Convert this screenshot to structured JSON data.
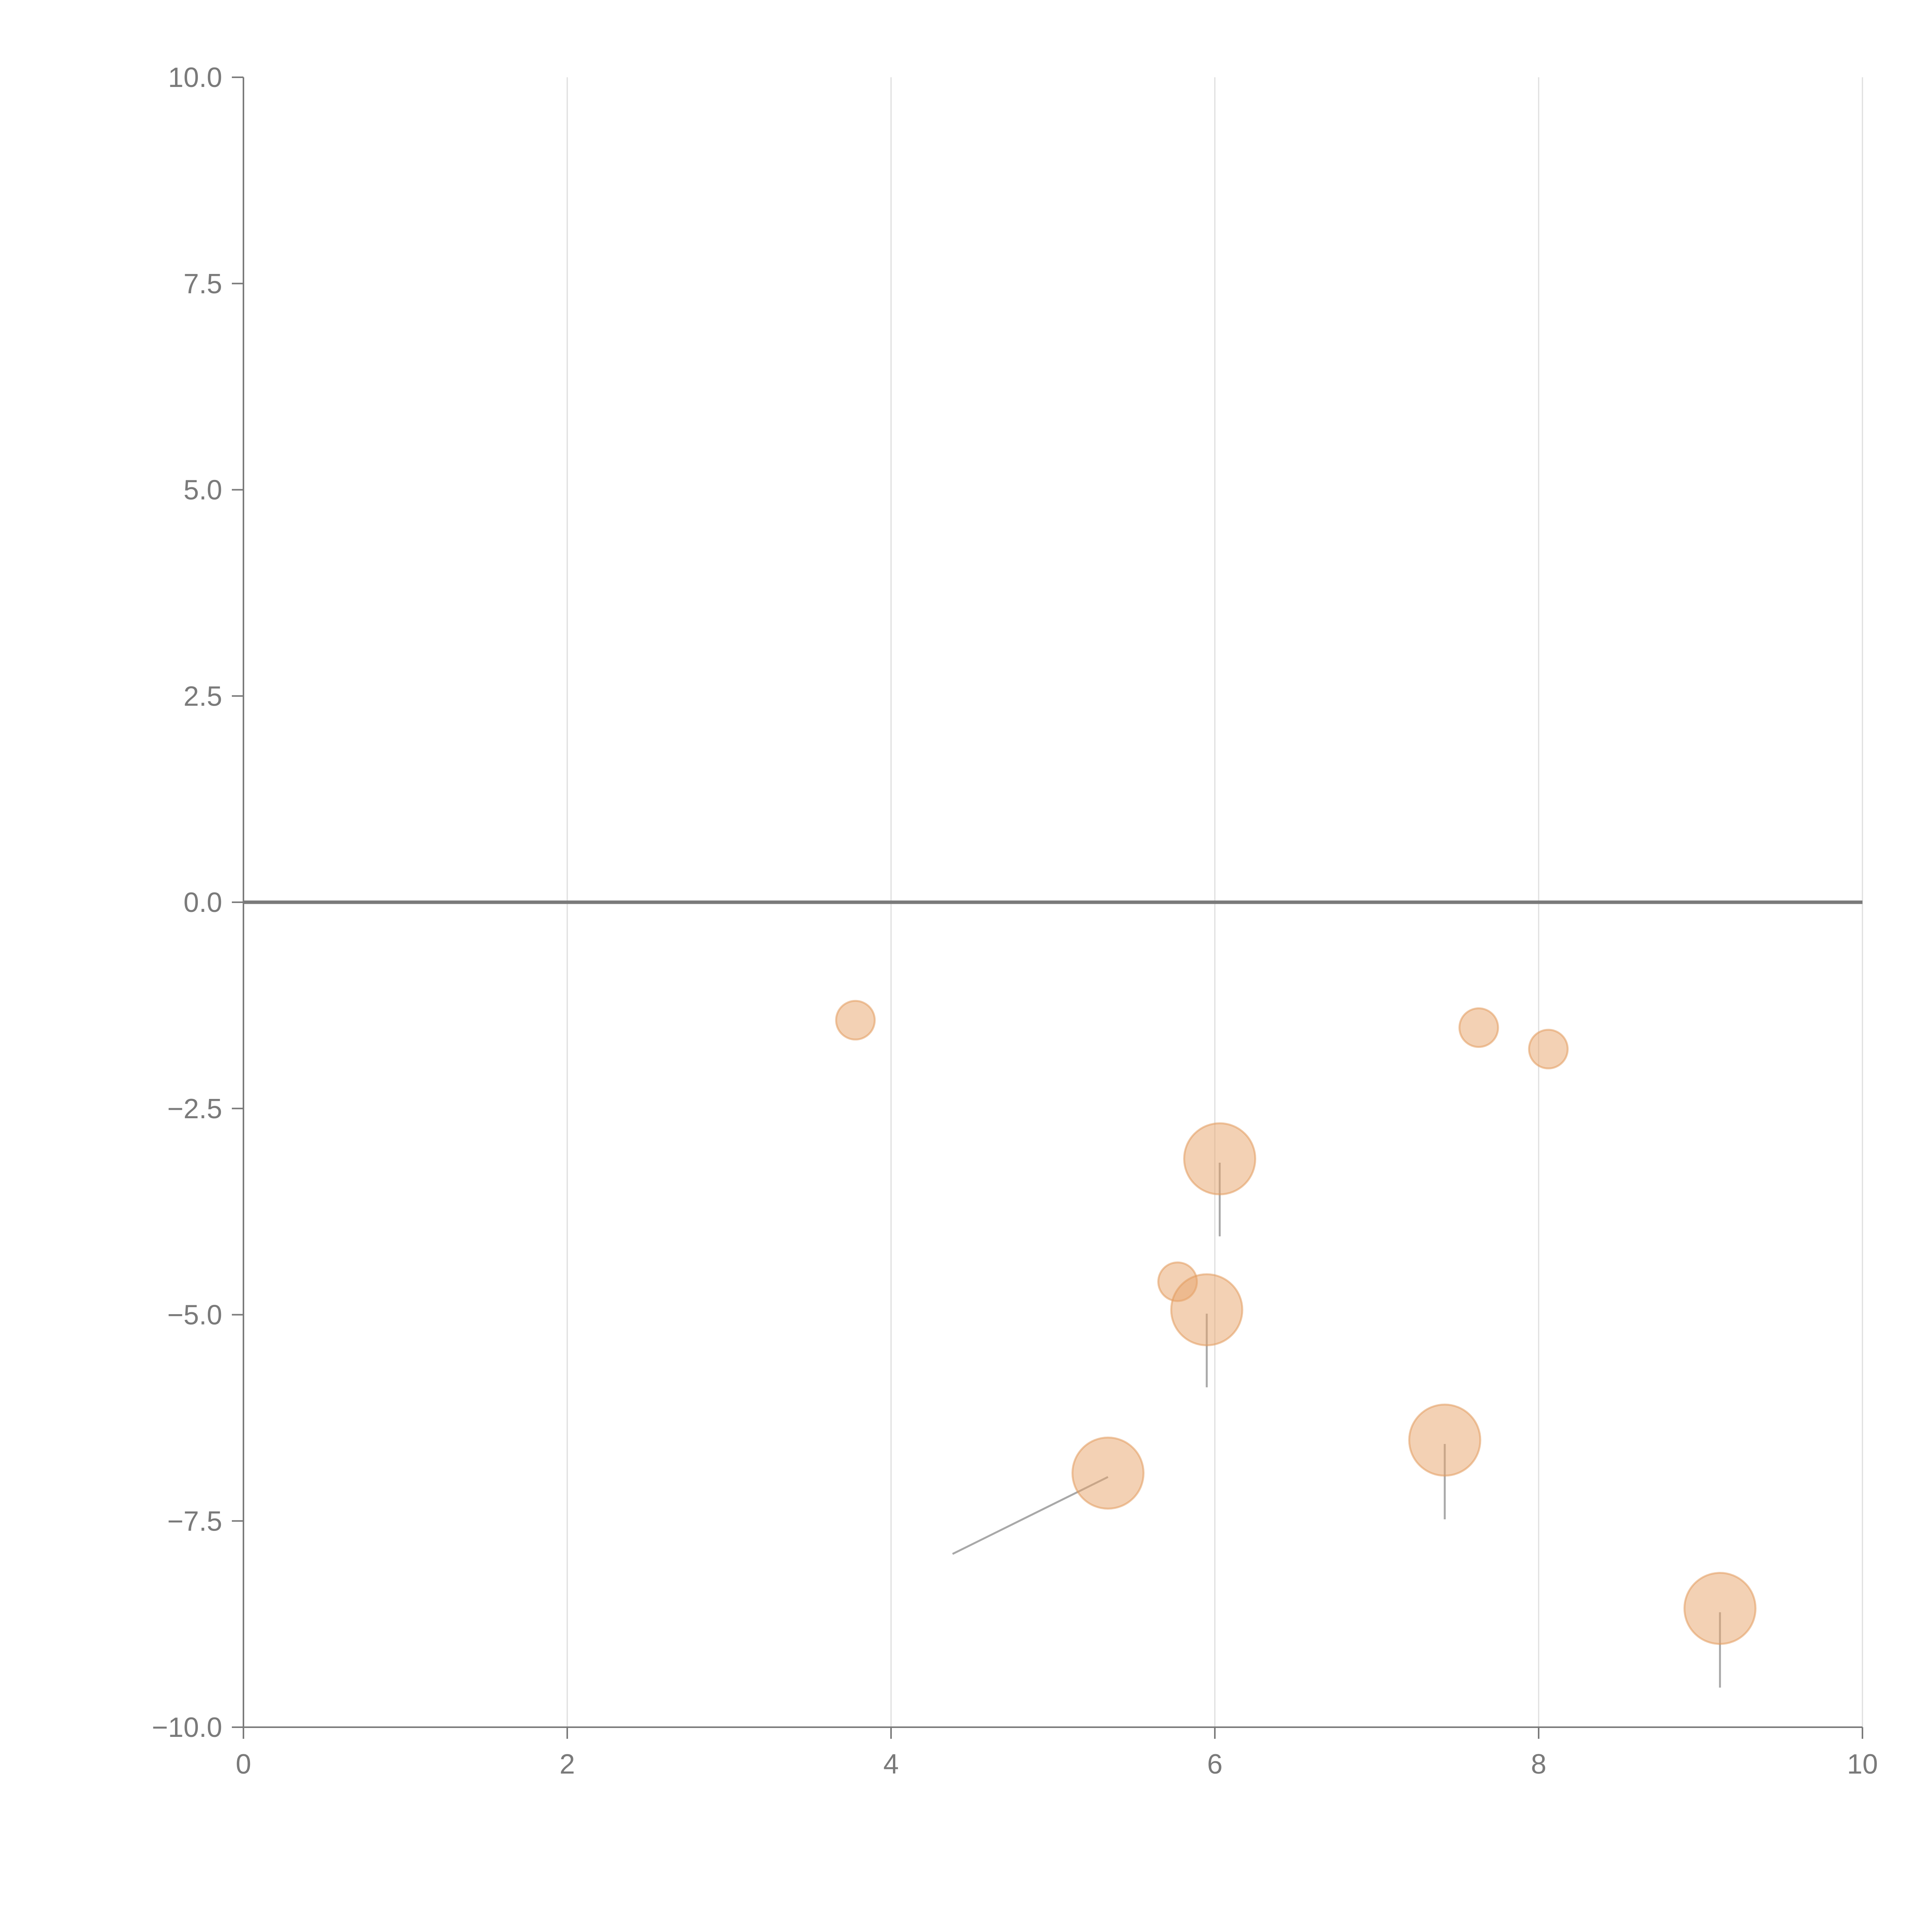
{
  "chart_data": {
    "type": "scatter",
    "title": "",
    "xlabel": "",
    "ylabel": "",
    "xlim": [
      0,
      10
    ],
    "ylim": [
      -10,
      10
    ],
    "x_ticks": [
      0,
      2,
      4,
      6,
      8,
      10
    ],
    "x_tick_labels": [
      "0",
      "2",
      "4",
      "6",
      "8",
      "10"
    ],
    "y_ticks": [
      10,
      7.5,
      5,
      2.5,
      0,
      -2.5,
      -5,
      -7.5,
      -10
    ],
    "y_tick_labels": [
      "10.0",
      "7.5",
      "5.0",
      "2.5",
      "0.0",
      "−2.5",
      "−5.0",
      "−7.5",
      "−10.0"
    ],
    "grid": "vertical",
    "zero_line": 0,
    "colors": {
      "bubble_fill": "#e8a36a",
      "bubble_stroke": "#e29a5c",
      "leader": "#a8a8a8",
      "axis": "#7a7a7a",
      "grid": "#dedede"
    },
    "series": [
      {
        "name": "points",
        "points": [
          {
            "x": 3.78,
            "y": -1.43,
            "size": 1
          },
          {
            "x": 7.63,
            "y": -1.52,
            "size": 1
          },
          {
            "x": 8.06,
            "y": -1.78,
            "size": 1
          },
          {
            "x": 6.03,
            "y": -3.11,
            "size": 3,
            "leader_to": [
              6.03,
              -4.05
            ]
          },
          {
            "x": 5.77,
            "y": -4.6,
            "size": 1
          },
          {
            "x": 5.95,
            "y": -4.94,
            "size": 3,
            "leader_to": [
              5.95,
              -5.88
            ]
          },
          {
            "x": 7.42,
            "y": -6.52,
            "size": 3,
            "leader_to": [
              7.42,
              -7.48
            ]
          },
          {
            "x": 5.34,
            "y": -6.92,
            "size": 3,
            "leader_to": [
              4.38,
              -7.9
            ]
          },
          {
            "x": 9.12,
            "y": -8.56,
            "size": 3,
            "leader_to": [
              9.12,
              -9.52
            ]
          }
        ]
      }
    ]
  }
}
